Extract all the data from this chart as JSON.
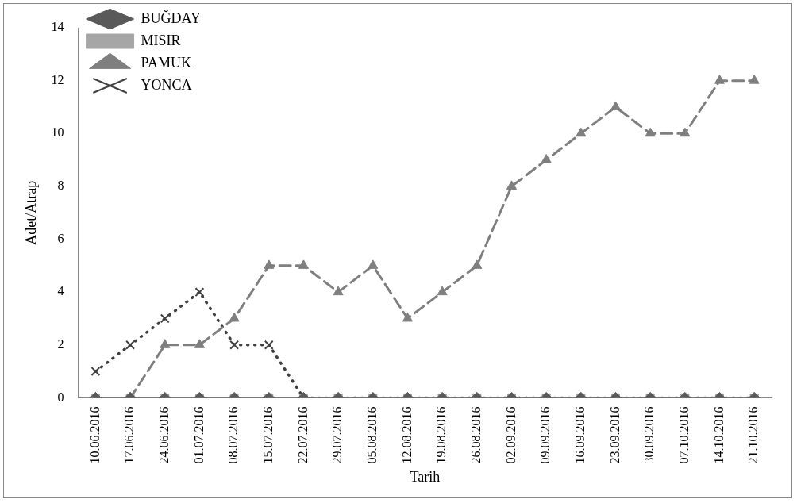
{
  "chart_data": {
    "type": "line",
    "xlabel": "Tarih",
    "ylabel": "Adet/Atrap",
    "categories": [
      "10.06.2016",
      "17.06.2016",
      "24.06.2016",
      "01.07.2016",
      "08.07.2016",
      "15.07.2016",
      "22.07.2016",
      "29.07.2016",
      "05.08.2016",
      "12.08.2016",
      "19.08.2016",
      "26.08.2016",
      "02.09.2016",
      "09.09.2016",
      "16.09.2016",
      "23.09.2016",
      "30.09.2016",
      "07.10.2016",
      "14.10.2016",
      "21.10.2016"
    ],
    "series": [
      {
        "name": "BUĞDAY",
        "color": "#595959",
        "marker": "diamond",
        "line_style": "solid",
        "values": [
          0,
          0,
          0,
          0,
          0,
          0,
          0,
          0,
          0,
          0,
          0,
          0,
          0,
          0,
          0,
          0,
          0,
          0,
          0,
          0
        ]
      },
      {
        "name": "MISIR",
        "color": "#a6a6a6",
        "marker": "square",
        "line_style": "solid",
        "values": [
          0,
          0,
          0,
          0,
          0,
          0,
          0,
          0,
          0,
          0,
          0,
          0,
          0,
          0,
          0,
          0,
          0,
          0,
          0,
          0
        ]
      },
      {
        "name": "PAMUK",
        "color": "#7f7f7f",
        "marker": "triangle",
        "line_style": "dashed",
        "values": [
          0,
          0,
          2,
          2,
          3,
          5,
          5,
          4,
          5,
          3,
          4,
          5,
          8,
          9,
          10,
          11,
          10,
          10,
          12,
          12
        ]
      },
      {
        "name": "YONCA",
        "color": "#404040",
        "marker": "cross",
        "line_style": "dotted",
        "values": [
          1,
          2,
          3,
          4,
          2,
          2,
          0,
          0,
          0,
          0,
          0,
          0,
          0,
          0,
          0,
          0,
          0,
          0,
          0,
          0
        ]
      }
    ],
    "ylim": [
      0,
      14
    ],
    "yticks": [
      0,
      2,
      4,
      6,
      8,
      10,
      12,
      14
    ],
    "grid": false,
    "legend": "top left"
  }
}
